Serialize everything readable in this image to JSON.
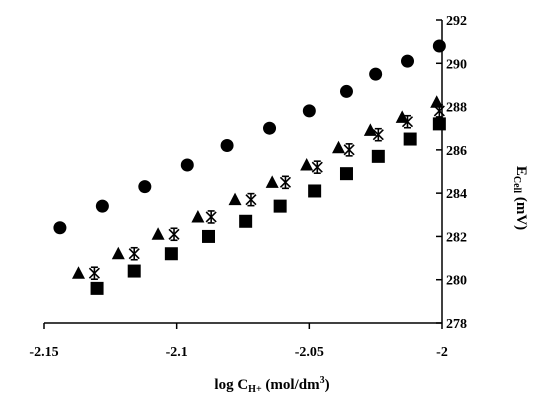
{
  "chart_data": {
    "type": "scatter",
    "xlabel": "log C",
    "xlabel_sub": "H+",
    "xlabel_unit": " (mol/dm",
    "xlabel_sup": "3",
    "xlabel_close": ")",
    "ylabel": "E",
    "ylabel_sub": "Cell",
    "ylabel_unit": " (mV)",
    "y_axis_position": "right",
    "xlim": [
      -2.15,
      -2.0
    ],
    "ylim": [
      278,
      292
    ],
    "x_ticks": [
      -2.15,
      -2.1,
      -2.05,
      -2.0
    ],
    "x_tick_labels": [
      "-2.15",
      "-2.1",
      "-2.05",
      "-2"
    ],
    "y_ticks": [
      278,
      280,
      282,
      284,
      286,
      288,
      290,
      292
    ],
    "y_tick_labels": [
      "278",
      "280",
      "282",
      "284",
      "286",
      "288",
      "290",
      "292"
    ],
    "grid": false,
    "series": [
      {
        "marker": "circle",
        "color": "#000000",
        "x": [
          -2.144,
          -2.128,
          -2.112,
          -2.096,
          -2.081,
          -2.065,
          -2.05,
          -2.036,
          -2.025,
          -2.013,
          -2.001
        ],
        "y": [
          282.4,
          283.4,
          284.3,
          285.3,
          286.2,
          287.0,
          287.8,
          288.7,
          289.5,
          290.1,
          290.8
        ]
      },
      {
        "marker": "triangle",
        "color": "#000000",
        "x": [
          -2.137,
          -2.122,
          -2.107,
          -2.092,
          -2.078,
          -2.064,
          -2.051,
          -2.039,
          -2.027,
          -2.015,
          -2.002
        ],
        "y": [
          280.3,
          281.2,
          282.1,
          282.9,
          283.7,
          284.5,
          285.3,
          286.1,
          286.9,
          287.5,
          288.2
        ]
      },
      {
        "marker": "asterisk",
        "color": "#000000",
        "x": [
          -2.131,
          -2.116,
          -2.101,
          -2.087,
          -2.072,
          -2.059,
          -2.047,
          -2.035,
          -2.024,
          -2.013,
          -2.001
        ],
        "y": [
          280.3,
          281.2,
          282.1,
          282.9,
          283.7,
          284.5,
          285.2,
          286.0,
          286.7,
          287.3,
          287.8
        ]
      },
      {
        "marker": "square",
        "color": "#000000",
        "x": [
          -2.13,
          -2.116,
          -2.102,
          -2.088,
          -2.074,
          -2.061,
          -2.048,
          -2.036,
          -2.024,
          -2.012,
          -2.001
        ],
        "y": [
          279.6,
          280.4,
          281.2,
          282.0,
          282.7,
          283.4,
          284.1,
          284.9,
          285.7,
          286.5,
          287.2
        ]
      }
    ]
  }
}
